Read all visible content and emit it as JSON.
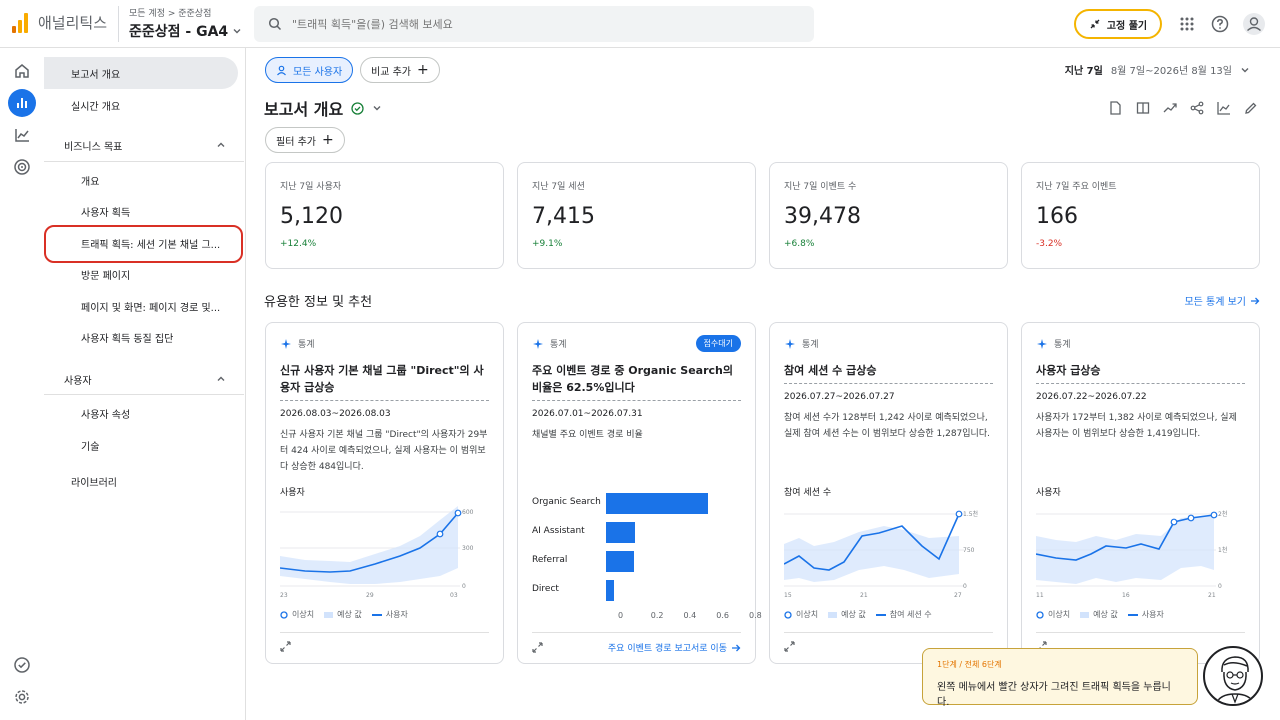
{
  "header": {
    "app_name": "애널리틱스",
    "crumb": "모든 계정 > 준준상점",
    "property_name": "준준상점 - GA4",
    "search_placeholder": "\"트래픽 획득\"을(를) 검색해 보세요",
    "unpin_label": "고정 풀기",
    "brand_colors": {
      "orange": "#f9ab00",
      "dark_orange": "#e37400"
    }
  },
  "rail": [
    "home-icon",
    "reports-icon",
    "explore-icon",
    "advertising-icon",
    "admin-icon",
    "settings-icon"
  ],
  "nav": {
    "overview": "보고서 개요",
    "realtime": "실시간 개요",
    "business_goals": "비즈니스 목표",
    "overview_sub": "개요",
    "user_acquisition": "사용자 획득",
    "traffic_acquisition": "트래픽 획득: 세션 기본 채널 그...",
    "landing_page": "방문 페이지",
    "pages_screens": "페이지 및 화면: 페이지 경로 및...",
    "user_cohort": "사용자 획득 동질 집단",
    "user": "사용자",
    "user_attributes": "사용자 속성",
    "tech": "기술",
    "library": "라이브러리"
  },
  "main": {
    "all_users_chip": "모든 사용자",
    "compare_chip": "비교 추가",
    "date_label": "지난 7일",
    "date_range": "8월 7일~2026년 8월 13일",
    "title": "보고서 개요",
    "filter_chip": "필터 추가",
    "kpis": [
      {
        "label": "지난 7일 사용자",
        "value": "5,120",
        "change": "+12.4%",
        "color": "#188038"
      },
      {
        "label": "지난 7일 세션",
        "value": "7,415",
        "change": "+9.1%",
        "color": "#188038"
      },
      {
        "label": "지난 7일 이벤트 수",
        "value": "39,478",
        "change": "+6.8%",
        "color": "#188038"
      },
      {
        "label": "지난 7일 주요 이벤트",
        "value": "166",
        "change": "-3.2%",
        "color": "#d93025"
      }
    ],
    "insights_title": "유용한 정보 및 추천",
    "view_all": "모든 통계 보기",
    "cards": [
      {
        "tag": "통계",
        "title": "신규 사용자 기본 채널 그룹 \"Direct\"의 사용자 급상승",
        "date": "2026.08.03~2026.08.03",
        "body": "신규 사용자 기본 채널 그룹 \"Direct\"의 사용자가 29부터 424 사이로 예측되었으나, 실제 사용자는 이 범위보다 상승한 484입니다.",
        "chart_label": "사용자",
        "y_ticks": [
          "600",
          "300",
          "0"
        ],
        "x_ticks": [
          "23",
          "29",
          "03"
        ],
        "legend": [
          "이상치",
          "예상 값",
          "사용자"
        ]
      },
      {
        "tag": "통계",
        "badge": "접수대기",
        "title": "주요 이벤트 경로 중 Organic Search의 비율은 62.5%입니다",
        "date": "2026.07.01~2026.07.31",
        "body": "채널별 주요 이벤트 경로 비율",
        "bars": [
          {
            "label": "Organic Search",
            "value": 0.625
          },
          {
            "label": "AI Assistant",
            "value": 0.18
          },
          {
            "label": "Referral",
            "value": 0.17
          },
          {
            "label": "Direct",
            "value": 0.05
          }
        ],
        "x_ticks": [
          "0",
          "0.2",
          "0.4",
          "0.6",
          "0.8"
        ],
        "footer_link": "주요 이벤트 경로 보고서로 이동"
      },
      {
        "tag": "통계",
        "title": "참여 세션 수 급상승",
        "date": "2026.07.27~2026.07.27",
        "body": "참여 세션 수가 128부터 1,242 사이로 예측되었으나, 실제 참여 세션 수는 이 범위보다 상승한 1,287입니다.",
        "chart_label": "참여 세션 수",
        "y_ticks": [
          "1.5천",
          "750",
          "0"
        ],
        "x_ticks": [
          "15",
          "21",
          "27"
        ],
        "legend": [
          "이상치",
          "예상 값",
          "참여 세션 수"
        ]
      },
      {
        "tag": "통계",
        "title": "사용자 급상승",
        "date": "2026.07.22~2026.07.22",
        "body": "사용자가 172부터 1,382 사이로 예측되었으나, 실제 사용자는 이 범위보다 상승한 1,419입니다.",
        "chart_label": "사용자",
        "y_ticks": [
          "2천",
          "1천",
          "0"
        ],
        "x_ticks": [
          "11",
          "16",
          "21"
        ],
        "legend": [
          "이상치",
          "예상 값",
          "사용자"
        ]
      }
    ]
  },
  "tooltip": {
    "step": "1단계 / 전체 6단계",
    "text": "왼쪽 메뉴에서 빨간 상자가 그려진 트래픽 획득을 누릅니다."
  }
}
